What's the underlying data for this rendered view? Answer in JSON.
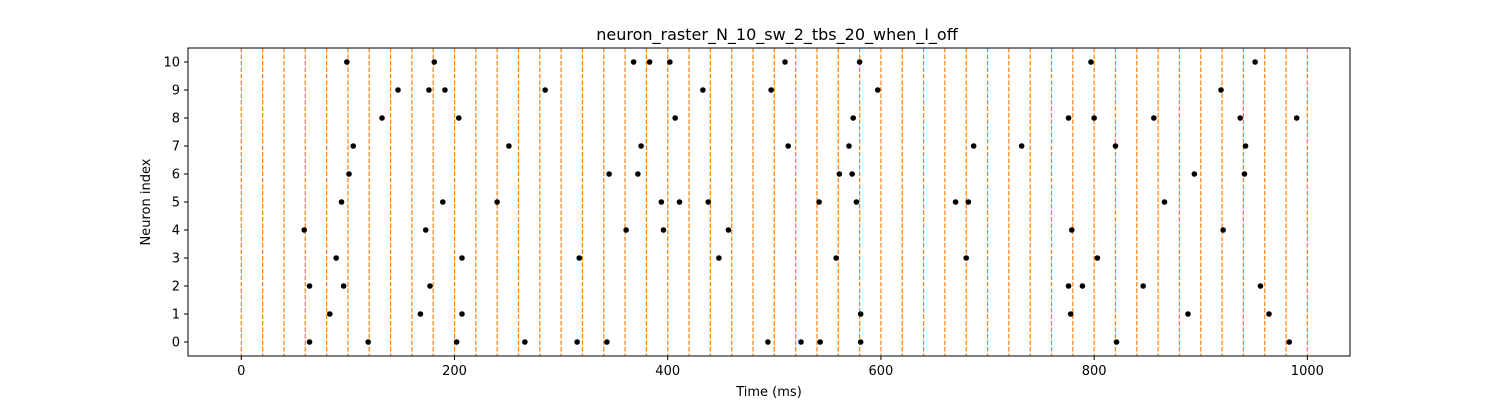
{
  "chart_data": {
    "type": "scatter",
    "title": "neuron_raster_N_10_sw_2_tbs_20_when_I_off",
    "xlabel": "Time (ms)",
    "ylabel": "Neuron index",
    "xlim": [
      -50,
      1040
    ],
    "ylim": [
      -0.5,
      10.5
    ],
    "xticks": [
      0,
      200,
      400,
      600,
      800,
      1000
    ],
    "yticks": [
      0,
      1,
      2,
      3,
      4,
      5,
      6,
      7,
      8,
      9,
      10
    ],
    "grid": false,
    "legend": "none",
    "colors": {
      "spike": "#000000",
      "boundary": "#ff7f0e",
      "axes": "#000000"
    },
    "boundaries": {
      "style": "dashed",
      "times": [
        0,
        20,
        40,
        60,
        80,
        100,
        120,
        140,
        160,
        180,
        200,
        220,
        240,
        260,
        280,
        300,
        320,
        340,
        360,
        380,
        400,
        420,
        440,
        460,
        480,
        500,
        520,
        540,
        560,
        580,
        600,
        620,
        640,
        660,
        680,
        700,
        720,
        740,
        760,
        780,
        800,
        820,
        840,
        860,
        880,
        900,
        920,
        940,
        960,
        980,
        1000
      ]
    },
    "series": [
      {
        "neuron": 0,
        "x": [
          64,
          119,
          202,
          266,
          315,
          343,
          494,
          525,
          543,
          581,
          821,
          983
        ]
      },
      {
        "neuron": 1,
        "x": [
          83,
          168,
          207,
          581,
          778,
          888,
          964
        ]
      },
      {
        "neuron": 2,
        "x": [
          64,
          96,
          177,
          776,
          789,
          846,
          956
        ]
      },
      {
        "neuron": 3,
        "x": [
          89,
          207,
          317,
          448,
          558,
          680,
          803
        ]
      },
      {
        "neuron": 4,
        "x": [
          59,
          173,
          361,
          396,
          457,
          779,
          921
        ]
      },
      {
        "neuron": 5,
        "x": [
          94,
          189,
          240,
          394,
          411,
          438,
          542,
          577,
          670,
          682,
          866
        ]
      },
      {
        "neuron": 6,
        "x": [
          101,
          345,
          372,
          561,
          573,
          894,
          941
        ]
      },
      {
        "neuron": 7,
        "x": [
          105,
          251,
          375,
          513,
          570,
          687,
          732,
          820,
          942
        ]
      },
      {
        "neuron": 8,
        "x": [
          132,
          204,
          407,
          574,
          776,
          800,
          856,
          937,
          990
        ]
      },
      {
        "neuron": 9,
        "x": [
          147,
          176,
          191,
          285,
          433,
          497,
          597,
          919
        ]
      },
      {
        "neuron": 10,
        "x": [
          99,
          181,
          368,
          383,
          402,
          510,
          580,
          797,
          951
        ]
      }
    ]
  }
}
